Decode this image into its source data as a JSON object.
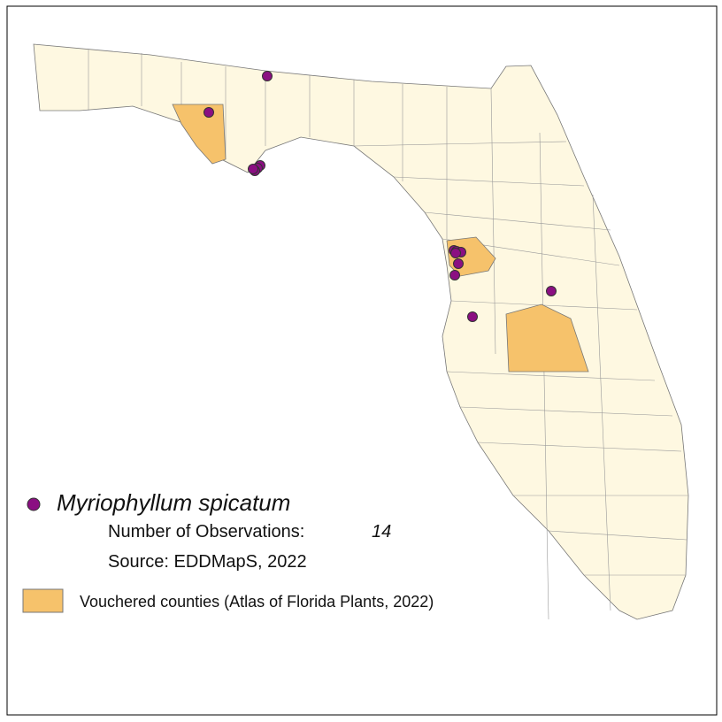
{
  "legend": {
    "species": "Myriophyllum spicatum",
    "observations_label": "Number of Observations:",
    "observations_count": 14,
    "source": "Source: EDDMapS, 2022",
    "voucher_label": "Vouchered counties (Atlas of Florida Plants, 2022)"
  }
}
